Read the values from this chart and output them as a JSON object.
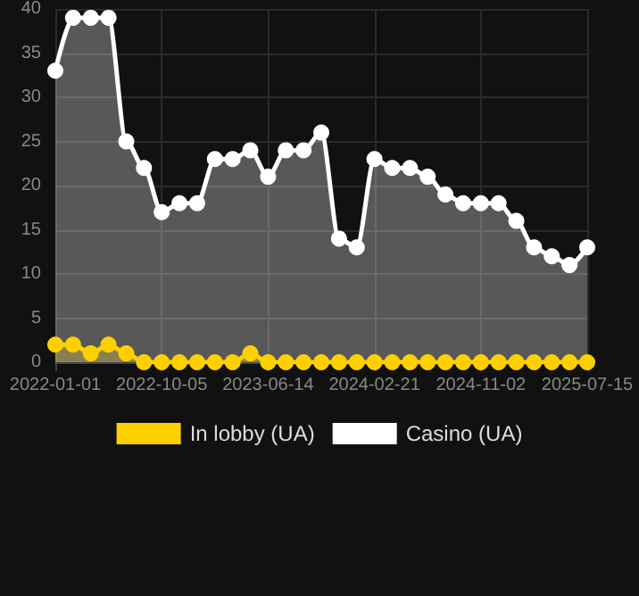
{
  "chart_data": {
    "type": "area",
    "categories": [
      "2022-01-01",
      null,
      null,
      null,
      null,
      null,
      "2022-10-05",
      null,
      null,
      null,
      null,
      null,
      "2023-06-14",
      null,
      null,
      null,
      null,
      null,
      "2024-02-21",
      null,
      null,
      null,
      null,
      null,
      "2024-11-02",
      null,
      null,
      null,
      null,
      null,
      "2025-07-15"
    ],
    "series": [
      {
        "name": "In lobby (UA)",
        "color": "#ffd000",
        "values": [
          2,
          2,
          1,
          2,
          1,
          0,
          0,
          0,
          0,
          0,
          0,
          1,
          0,
          0,
          0,
          0,
          0,
          0,
          0,
          0,
          0,
          0,
          0,
          0,
          0,
          0,
          0,
          0,
          0,
          0,
          0
        ]
      },
      {
        "name": "Casino (UA)",
        "color": "#ffffff",
        "values": [
          33,
          39,
          39,
          39,
          25,
          22,
          17,
          18,
          18,
          23,
          23,
          24,
          21,
          24,
          24,
          26,
          14,
          13,
          23,
          22,
          22,
          21,
          19,
          18,
          18,
          18,
          16,
          13,
          12,
          11,
          13
        ]
      }
    ],
    "ylim": [
      0,
      40
    ],
    "yticks": [
      0,
      5,
      10,
      15,
      20,
      25,
      30,
      35,
      40
    ],
    "grid": true,
    "legend": "bottom",
    "marker": "circle",
    "line_style": "solid"
  }
}
